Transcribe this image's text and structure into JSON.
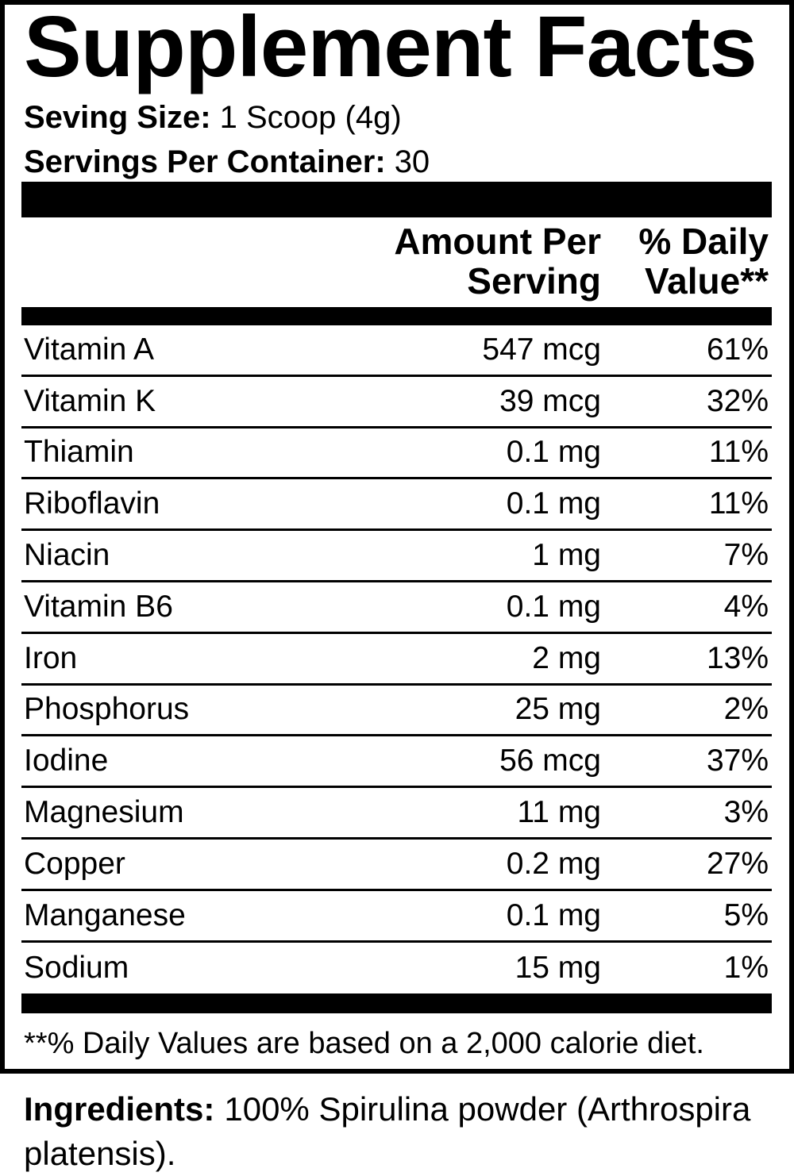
{
  "label": {
    "title": "Supplement Facts",
    "serving": {
      "size_label": "Seving Size:",
      "size_value": "1 Scoop (4g)",
      "container_label": "Servings Per Container:",
      "container_value": "30"
    },
    "columns": {
      "amount_header": "Amount Per\nServing",
      "dv_header": "% Daily\nValue**"
    },
    "rows": [
      {
        "name": "Vitamin A",
        "amount": "547 mcg",
        "dv": "61%"
      },
      {
        "name": "Vitamin K",
        "amount": "39 mcg",
        "dv": "32%"
      },
      {
        "name": "Thiamin",
        "amount": "0.1 mg",
        "dv": "11%"
      },
      {
        "name": "Riboflavin",
        "amount": "0.1 mg",
        "dv": "11%"
      },
      {
        "name": "Niacin",
        "amount": "1 mg",
        "dv": "7%"
      },
      {
        "name": "Vitamin B6",
        "amount": "0.1 mg",
        "dv": "4%"
      },
      {
        "name": "Iron",
        "amount": "2 mg",
        "dv": "13%"
      },
      {
        "name": "Phosphorus",
        "amount": "25 mg",
        "dv": "2%"
      },
      {
        "name": "Iodine",
        "amount": "56 mcg",
        "dv": "37%"
      },
      {
        "name": "Magnesium",
        "amount": "11 mg",
        "dv": "3%"
      },
      {
        "name": "Copper",
        "amount": "0.2 mg",
        "dv": "27%"
      },
      {
        "name": "Manganese",
        "amount": "0.1 mg",
        "dv": "5%"
      },
      {
        "name": "Sodium",
        "amount": "15 mg",
        "dv": "1%"
      }
    ],
    "footnote": "**% Daily Values are based on a 2,000 calorie diet.",
    "colors": {
      "ink": "#000000",
      "background": "#ffffff"
    }
  },
  "ingredients": {
    "label": "Ingredients:",
    "line1_rest": "100% Spirulina powder (Arthrospira",
    "line2": "platensis)."
  }
}
